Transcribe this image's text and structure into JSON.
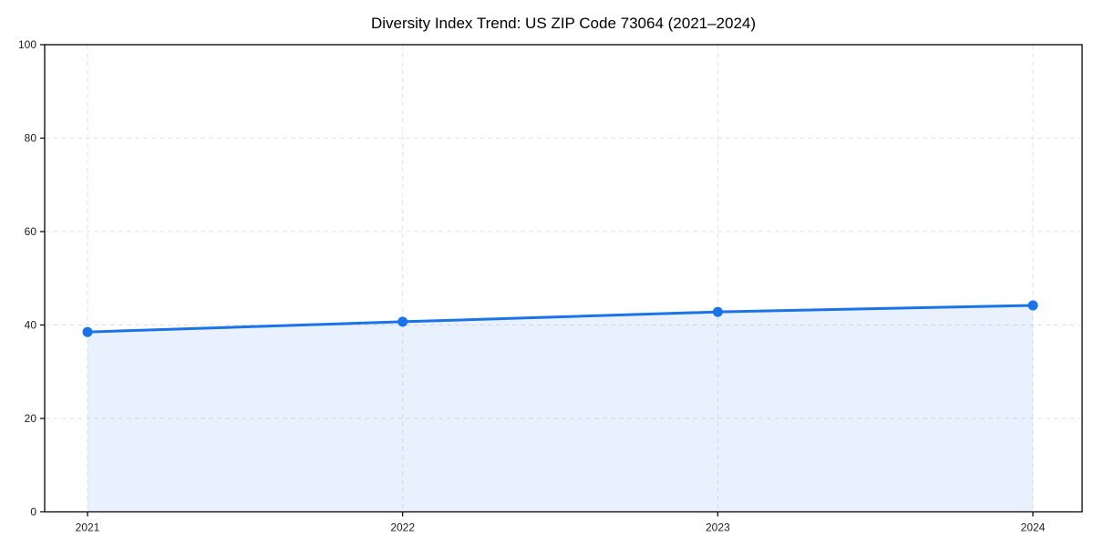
{
  "chart_data": {
    "type": "line",
    "title": "Diversity Index Trend: US ZIP Code 73064 (2021–2024)",
    "x": [
      2021,
      2022,
      2023,
      2024
    ],
    "xticks": [
      "2021",
      "2022",
      "2023",
      "2024"
    ],
    "series": [
      {
        "name": "Diversity Index",
        "values": [
          38.5,
          40.7,
          42.8,
          44.2
        ]
      }
    ],
    "xlabel": "",
    "ylabel": "",
    "ylim": [
      0,
      100
    ],
    "yticks": [
      0,
      20,
      40,
      60,
      80,
      100
    ],
    "grid": "dashed-both-axes",
    "legend": "none",
    "area_fill": true,
    "marker": "circle",
    "colors": {
      "line": "#1a73e8",
      "marker": "#1a73e8",
      "area_fill": "rgba(26,115,232,0.10)",
      "grid": "#e3e3e3",
      "spine": "#000000",
      "tick_label": "#1b1b1b",
      "title": "#000000",
      "background": "#ffffff"
    }
  }
}
